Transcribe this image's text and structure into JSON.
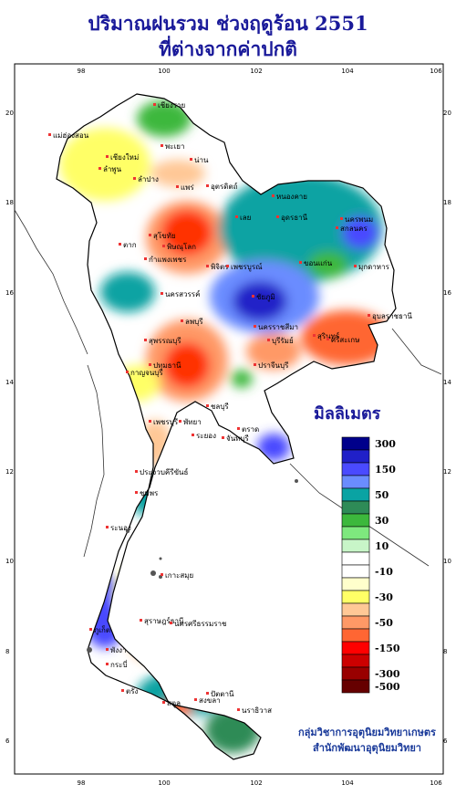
{
  "title_line1": "ปริมาณฝนรวม ช่วงฤดูร้อน 2551",
  "title_line2": "ที่ต่างจากค่าปกติ",
  "legend": {
    "unit": "มิลลิเมตร",
    "bins": [
      {
        "label": "300",
        "color": "#00008b"
      },
      {
        "label": "",
        "color": "#2020c8"
      },
      {
        "label": "150",
        "color": "#4a4aff"
      },
      {
        "label": "",
        "color": "#6a8cff"
      },
      {
        "label": "50",
        "color": "#0aa3a3"
      },
      {
        "label": "",
        "color": "#2e8b57"
      },
      {
        "label": "30",
        "color": "#3cb83c"
      },
      {
        "label": "",
        "color": "#7ee87e"
      },
      {
        "label": "10",
        "color": "#c8f5c8"
      },
      {
        "label": "",
        "color": "#ffffff"
      },
      {
        "label": "-10",
        "color": "#ffffff"
      },
      {
        "label": "",
        "color": "#ffffcc"
      },
      {
        "label": "-30",
        "color": "#ffff66"
      },
      {
        "label": "",
        "color": "#ffc896"
      },
      {
        "label": "-50",
        "color": "#ff9966"
      },
      {
        "label": "",
        "color": "#ff6633"
      },
      {
        "label": "-150",
        "color": "#ff0000"
      },
      {
        "label": "",
        "color": "#cc0000"
      },
      {
        "label": "-300",
        "color": "#990000"
      },
      {
        "label": "-500",
        "color": "#660000"
      }
    ]
  },
  "axes": {
    "lon_ticks": [
      "98",
      "100",
      "102",
      "104",
      "106"
    ],
    "lat_ticks": [
      "20",
      "18",
      "16",
      "14",
      "12",
      "10",
      "8",
      "6"
    ]
  },
  "provinces": [
    "เชียงราย",
    "แม่ฮ่องสอน",
    "เชียงใหม่",
    "ลำพูน",
    "พะเยา",
    "น่าน",
    "ลำปาง",
    "แพร่",
    "อุตรดิตถ์",
    "ตาก",
    "สุโขทัย",
    "พิษณุโลก",
    "กำแพงเพชร",
    "พิจิตร",
    "เพชรบูรณ์",
    "นครสวรรค์",
    "หนองคาย",
    "อุดรธานี",
    "เลย",
    "สกลนคร",
    "นครพนม",
    "ขอนแก่น",
    "มุกดาหาร",
    "ชัยภูมิ",
    "นครราชสีมา",
    "บุรีรัมย์",
    "สุรินทร์",
    "ศรีสะเกษ",
    "อุบลราชธานี",
    "ลพบุรี",
    "สุพรรณบุรี",
    "กาญจนบุรี",
    "ปทุมธานี",
    "ปราจีนบุรี",
    "ชลบุรี",
    "พัทยา",
    "ระยอง",
    "จันทบุรี",
    "ตราด",
    "เพชรบุรี",
    "ประจวบคีรีขันธ์",
    "ชุมพร",
    "ระนอง",
    "สุราษฎร์ธานี",
    "เกาะสมุย",
    "ภูเก็ต",
    "พังงา",
    "กระบี่",
    "นครศรีธรรมราช",
    "ตรัง",
    "สงขลา",
    "สตูล",
    "ปัตตานี",
    "นราธิวาส"
  ],
  "credit_line1": "กลุ่มวิชาการอุตุนิยมวิทยาเกษตร",
  "credit_line2": "สำนักพัฒนาอุตุนิยมวิทยา"
}
